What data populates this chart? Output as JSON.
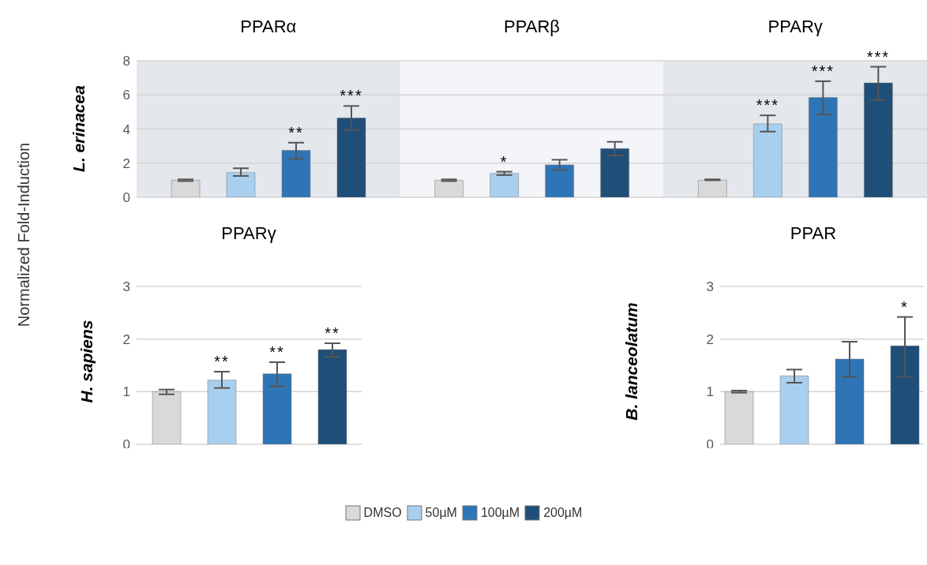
{
  "chart_data": [
    {
      "type": "bar",
      "ylabel": "L. erinacea",
      "annotations": [
        "Normalized Fold-Induction"
      ],
      "categories": [
        "PPARα",
        "PPARβ",
        "PPARγ"
      ],
      "series": [
        {
          "color": "#d9d9d9",
          "values": [
            1.0,
            1.0,
            1.0
          ],
          "errors": [
            [
              0.95,
              1.05
            ],
            [
              0.95,
              1.05
            ],
            [
              1.0,
              1.05
            ]
          ],
          "value_labels": [
            null,
            null,
            null
          ]
        },
        {
          "color": "#a9cfef",
          "values": [
            1.45,
            1.4,
            4.3
          ],
          "errors": [
            [
              1.25,
              1.7
            ],
            [
              1.3,
              1.5
            ],
            [
              3.85,
              4.8
            ]
          ],
          "value_labels": [
            null,
            "*",
            "***"
          ]
        },
        {
          "color": "#2e75b6",
          "values": [
            2.75,
            1.9,
            5.85
          ],
          "errors": [
            [
              2.25,
              3.2
            ],
            [
              1.6,
              2.2
            ],
            [
              4.85,
              6.8
            ]
          ],
          "value_labels": [
            "**",
            null,
            "***"
          ]
        },
        {
          "color": "#1f4e79",
          "values": [
            4.65,
            2.85,
            6.7
          ],
          "errors": [
            [
              3.95,
              5.35
            ],
            [
              2.45,
              3.25
            ],
            [
              5.7,
              7.65
            ]
          ],
          "value_labels": [
            "***",
            null,
            "***"
          ]
        }
      ],
      "ylim": [
        0,
        8
      ],
      "yticks": [
        0,
        2,
        4,
        6,
        8
      ],
      "grid": "y",
      "bands": [
        {
          "axis": "x",
          "from": "PPARα",
          "to": "PPARα",
          "color": "#e4e7ec"
        },
        {
          "axis": "x",
          "from": "PPARβ",
          "to": "PPARβ",
          "color": "#f4f5f8"
        },
        {
          "axis": "x",
          "from": "PPARγ",
          "to": "PPARγ",
          "color": "#e4e7ec"
        }
      ]
    },
    {
      "type": "bar",
      "title": "PPARγ",
      "ylabel": "H. sapiens",
      "categories": [
        null
      ],
      "series": [
        {
          "color": "#d9d9d9",
          "values": [
            1.0
          ],
          "errors": [
            [
              0.95,
              1.04
            ]
          ],
          "value_labels": [
            null
          ]
        },
        {
          "color": "#a9cfef",
          "values": [
            1.22
          ],
          "errors": [
            [
              1.07,
              1.38
            ]
          ],
          "value_labels": [
            "**"
          ]
        },
        {
          "color": "#2e75b6",
          "values": [
            1.34
          ],
          "errors": [
            [
              1.1,
              1.56
            ]
          ],
          "value_labels": [
            "**"
          ]
        },
        {
          "color": "#1f4e79",
          "values": [
            1.8
          ],
          "errors": [
            [
              1.66,
              1.92
            ]
          ],
          "value_labels": [
            "**"
          ]
        }
      ],
      "ylim": [
        0,
        3
      ],
      "yticks": [
        0,
        1,
        2,
        3
      ],
      "grid": "y",
      "tick_labels": "y"
    },
    {
      "type": "bar",
      "title": "PPAR",
      "ylabel": "B. lanceolatum",
      "categories": [
        null
      ],
      "series": [
        {
          "name": "DMSO",
          "color": "#d9d9d9",
          "values": [
            1.0
          ],
          "errors": [
            [
              0.98,
              1.02
            ]
          ],
          "value_labels": [
            null
          ]
        },
        {
          "name": "50µM",
          "color": "#a9cfef",
          "values": [
            1.3
          ],
          "errors": [
            [
              1.17,
              1.42
            ]
          ],
          "value_labels": [
            null
          ]
        },
        {
          "name": "100µM",
          "color": "#2e75b6",
          "values": [
            1.62
          ],
          "errors": [
            [
              1.28,
              1.95
            ]
          ],
          "value_labels": [
            null
          ]
        },
        {
          "name": "200µM",
          "color": "#1f4e79",
          "values": [
            1.87
          ],
          "errors": [
            [
              1.28,
              2.42
            ]
          ],
          "value_labels": [
            "*"
          ]
        }
      ],
      "ylim": [
        0,
        3
      ],
      "yticks": [
        0,
        1,
        2,
        3
      ],
      "grid": "y",
      "tick_labels": "y",
      "legend": "bottom"
    }
  ]
}
